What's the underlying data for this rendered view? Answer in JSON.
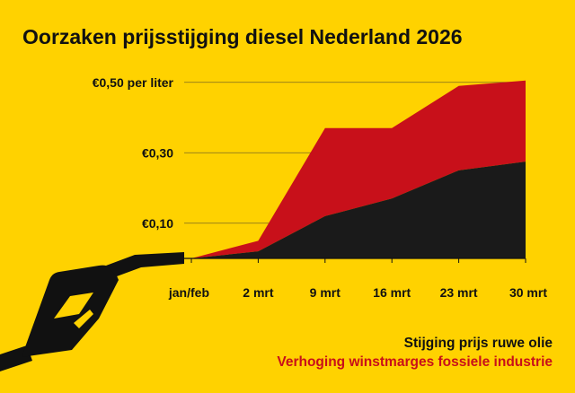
{
  "title": "Oorzaken prijsstijging diesel Nederland 2026",
  "colors": {
    "background": "#FFD200",
    "crude_oil": "#1A1A1A",
    "margins": "#C8101A",
    "text": "#111111"
  },
  "icons": [
    "fuel-nozzle-icon"
  ],
  "chart_data": {
    "type": "area",
    "stacked": true,
    "title": "Oorzaken prijsstijging diesel Nederland 2026",
    "xlabel": "",
    "ylabel": "",
    "ylim": [
      0,
      0.53
    ],
    "categories": [
      "jan/feb",
      "2 mrt",
      "9 mrt",
      "16 mrt",
      "23 mrt",
      "30 mrt"
    ],
    "yticks": [
      0.1,
      0.3,
      0.5
    ],
    "ytick_labels": [
      "€0,10",
      "€0,30",
      "€0,50 per liter"
    ],
    "grid": true,
    "series": [
      {
        "name": "Stijging prijs ruwe olie",
        "color": "#1A1A1A",
        "values": [
          0.0,
          0.02,
          0.12,
          0.17,
          0.25,
          0.275
        ]
      },
      {
        "name": "Verhoging winstmarges fossiele industrie",
        "color": "#C8101A",
        "values": [
          0.0,
          0.03,
          0.25,
          0.2,
          0.24,
          0.23
        ]
      }
    ],
    "legend_position": "bottom-right"
  }
}
